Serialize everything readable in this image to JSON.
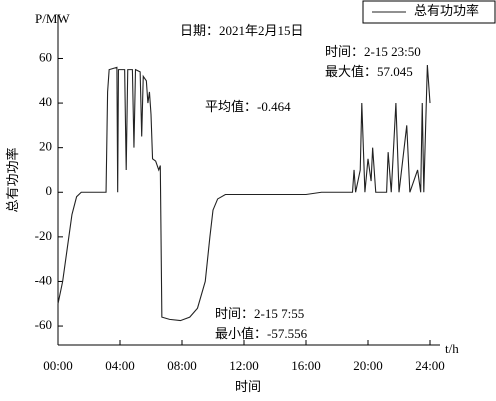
{
  "chart_data": {
    "type": "line",
    "y_unit": "P/MW",
    "x_unit": "t/h",
    "x_label": "时间",
    "y_label": "总有功功率",
    "annotations": [
      "日期：2021年2月15日",
      "平均值：-0.464",
      "时间：2-15 23:50",
      "最大值：57.045",
      "时间：2-15 7:55",
      "最小值：-57.556"
    ],
    "xlim": [
      0,
      24
    ],
    "xticks": [
      {
        "value": 0,
        "label": "00:00"
      },
      {
        "value": 4,
        "label": "04:00"
      },
      {
        "value": 8,
        "label": "08:00"
      },
      {
        "value": 12,
        "label": "12:00"
      },
      {
        "value": 16,
        "label": "16:00"
      },
      {
        "value": 20,
        "label": "20:00"
      },
      {
        "value": 24,
        "label": "24:00"
      }
    ],
    "ylim": [
      -68.5,
      79.5
    ],
    "yticks": [
      60,
      40,
      20,
      0,
      -20,
      -40,
      -60
    ],
    "legend": "top-right",
    "x": [
      0,
      0.3,
      0.6,
      0.9,
      1.2,
      1.5,
      3.1,
      3.2,
      3.3,
      3.8,
      3.85,
      3.9,
      4.3,
      4.4,
      4.5,
      4.8,
      4.9,
      5.0,
      5.3,
      5.4,
      5.5,
      5.7,
      5.8,
      5.9,
      6.0,
      6.1,
      6.3,
      6.5,
      6.6,
      6.7,
      7.2,
      7.9,
      8.5,
      9.0,
      9.5,
      9.8,
      10.0,
      10.3,
      10.8,
      12,
      14,
      16,
      17,
      19,
      19.1,
      19.2,
      19.5,
      19.6,
      19.8,
      20,
      20.2,
      20.3,
      20.5,
      21.2,
      21.3,
      21.5,
      21.8,
      22.0,
      22.5,
      22.7,
      23.2,
      23.4,
      23.5,
      23.6,
      23.83,
      24
    ],
    "series": [
      {
        "name": "总有功功率",
        "color": "#222222",
        "values": [
          -50,
          -40,
          -25,
          -10,
          -2,
          0,
          0,
          45,
          55,
          56,
          0,
          55,
          55,
          10,
          55,
          55,
          20,
          55,
          54,
          25,
          52,
          50,
          40,
          45,
          35,
          15,
          14,
          10,
          12,
          -56,
          -57,
          -57.556,
          -56,
          -52,
          -40,
          -20,
          -8,
          -3,
          -1,
          -1,
          -1,
          -1,
          0,
          0,
          10,
          0,
          10,
          40,
          0,
          15,
          5,
          20,
          0,
          0,
          18,
          0,
          40,
          0,
          30,
          0,
          10,
          0,
          40,
          0,
          57.045,
          40
        ]
      }
    ]
  }
}
